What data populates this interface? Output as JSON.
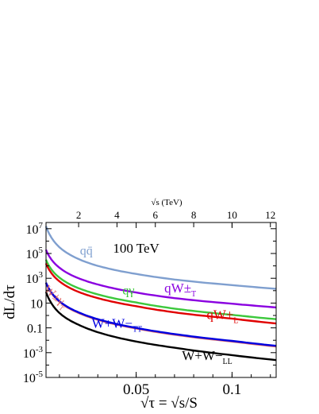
{
  "chart_data": {
    "type": "line",
    "annotation": "100 TeV",
    "xlabel": "√τ = √s/S",
    "ylabel": "dL/dτ",
    "top_xlabel": "√s (TeV)",
    "xlim": [
      0.003,
      0.123
    ],
    "ylim_log10": [
      -5,
      7.5
    ],
    "yscale": "log",
    "x_ticks": [
      0.05,
      0.1
    ],
    "x_tick_labels": [
      "0.05",
      "0.1"
    ],
    "top_ticks": [
      2,
      4,
      6,
      8,
      10,
      12
    ],
    "top_tick_labels": [
      "2",
      "4",
      "6",
      "8",
      "10",
      "12"
    ],
    "top_axis_scale_TeV": 100,
    "y_ticks": [
      {
        "label": "10",
        "exp": "-5",
        "log": -5
      },
      {
        "label": "10",
        "exp": "-3",
        "log": -3
      },
      {
        "label": "10",
        "exp": "-1",
        "log": -1
      },
      {
        "label": "0.1",
        "exp": "",
        "log": -1
      },
      {
        "label": "10",
        "exp": "",
        "log": 1
      },
      {
        "label": "10",
        "exp": "3",
        "log": 3
      },
      {
        "label": "10",
        "exp": "5",
        "log": 5
      },
      {
        "label": "10",
        "exp": "7",
        "log": 7
      }
    ],
    "series": [
      {
        "name": "qq̄",
        "color": "#7f9fcf",
        "x": [
          0.003,
          0.005,
          0.01,
          0.02,
          0.03,
          0.05,
          0.07,
          0.1,
          0.123
        ],
        "log_y": [
          7.2,
          6.5,
          5.5,
          4.55,
          4.0,
          3.35,
          2.9,
          2.45,
          2.15
        ]
      },
      {
        "name": "qW",
        "color": "#8a00e0",
        "x": [
          0.003,
          0.005,
          0.01,
          0.02,
          0.03,
          0.05,
          0.07,
          0.1,
          0.123
        ],
        "log_y": [
          5.3,
          4.7,
          3.85,
          3.0,
          2.5,
          1.85,
          1.4,
          0.95,
          0.65
        ]
      },
      {
        "name": "qγ",
        "color": "#3cc83c",
        "x": [
          0.003,
          0.005,
          0.01,
          0.02,
          0.03,
          0.05,
          0.07,
          0.1,
          0.123
        ],
        "log_y": [
          4.5,
          3.9,
          3.05,
          2.2,
          1.7,
          1.05,
          0.55,
          0.05,
          -0.3
        ]
      },
      {
        "name": "qW_L",
        "color": "#e00000",
        "x": [
          0.003,
          0.005,
          0.01,
          0.02,
          0.03,
          0.05,
          0.07,
          0.1,
          0.123
        ],
        "log_y": [
          4.2,
          3.6,
          2.75,
          1.9,
          1.4,
          0.75,
          0.25,
          -0.25,
          -0.65
        ]
      },
      {
        "name": "Wγ",
        "color": "#e06a6a",
        "x": [
          0.003,
          0.005,
          0.01,
          0.02,
          0.03,
          0.05,
          0.07,
          0.1,
          0.123
        ],
        "log_y": [
          2.6,
          2.0,
          1.1,
          0.2,
          -0.35,
          -1.05,
          -1.55,
          -2.1,
          -2.5
        ]
      },
      {
        "name": "W_T W_T",
        "color": "#0000e0",
        "x": [
          0.003,
          0.005,
          0.01,
          0.02,
          0.03,
          0.05,
          0.07,
          0.1,
          0.123
        ],
        "log_y": [
          2.65,
          2.05,
          1.15,
          0.25,
          -0.3,
          -1.0,
          -1.5,
          -2.05,
          -2.45
        ]
      },
      {
        "name": "W_L W_L",
        "color": "#000000",
        "x": [
          0.003,
          0.005,
          0.01,
          0.02,
          0.03,
          0.05,
          0.07,
          0.1,
          0.123
        ],
        "log_y": [
          1.9,
          1.2,
          0.2,
          -0.75,
          -1.35,
          -2.1,
          -2.6,
          -3.2,
          -3.6
        ]
      }
    ],
    "labels": [
      {
        "name": "series-label-qqbar",
        "text": "qq̄",
        "color": "#7f9fcf",
        "x": 0.024,
        "log_y": 4.9,
        "size": 16
      },
      {
        "name": "annotation-100tev",
        "text": "100 TeV",
        "color": "#000000",
        "x": 0.05,
        "log_y": 5.05,
        "size": 17
      },
      {
        "name": "series-label-qw",
        "text": "qW±",
        "sub": "T",
        "color": "#8a00e0",
        "x": 0.073,
        "log_y": 1.85,
        "size": 17
      },
      {
        "name": "series-label-qgamma",
        "text": "qγ",
        "color": "#3cc83c",
        "x": 0.046,
        "log_y": 1.7,
        "size": 16
      },
      {
        "name": "series-label-qwl",
        "text": "qW±",
        "sub": "L",
        "color": "#e00000",
        "x": 0.095,
        "log_y": -0.3,
        "size": 17
      },
      {
        "name": "series-label-wgamma",
        "text": "W±γ",
        "sub": "T",
        "color": "#e06a6a",
        "x": 0.007,
        "log_y": 1.3,
        "size": 15,
        "rotate": 40
      },
      {
        "name": "series-label-wtwt",
        "text": "W+W−",
        "sub": "TT",
        "color": "#0000e0",
        "x": 0.04,
        "log_y": -1.0,
        "size": 17
      },
      {
        "name": "series-label-wlwl",
        "text": "W+W−",
        "sub": "LL",
        "color": "#000000",
        "x": 0.087,
        "log_y": -3.6,
        "size": 17
      }
    ]
  }
}
